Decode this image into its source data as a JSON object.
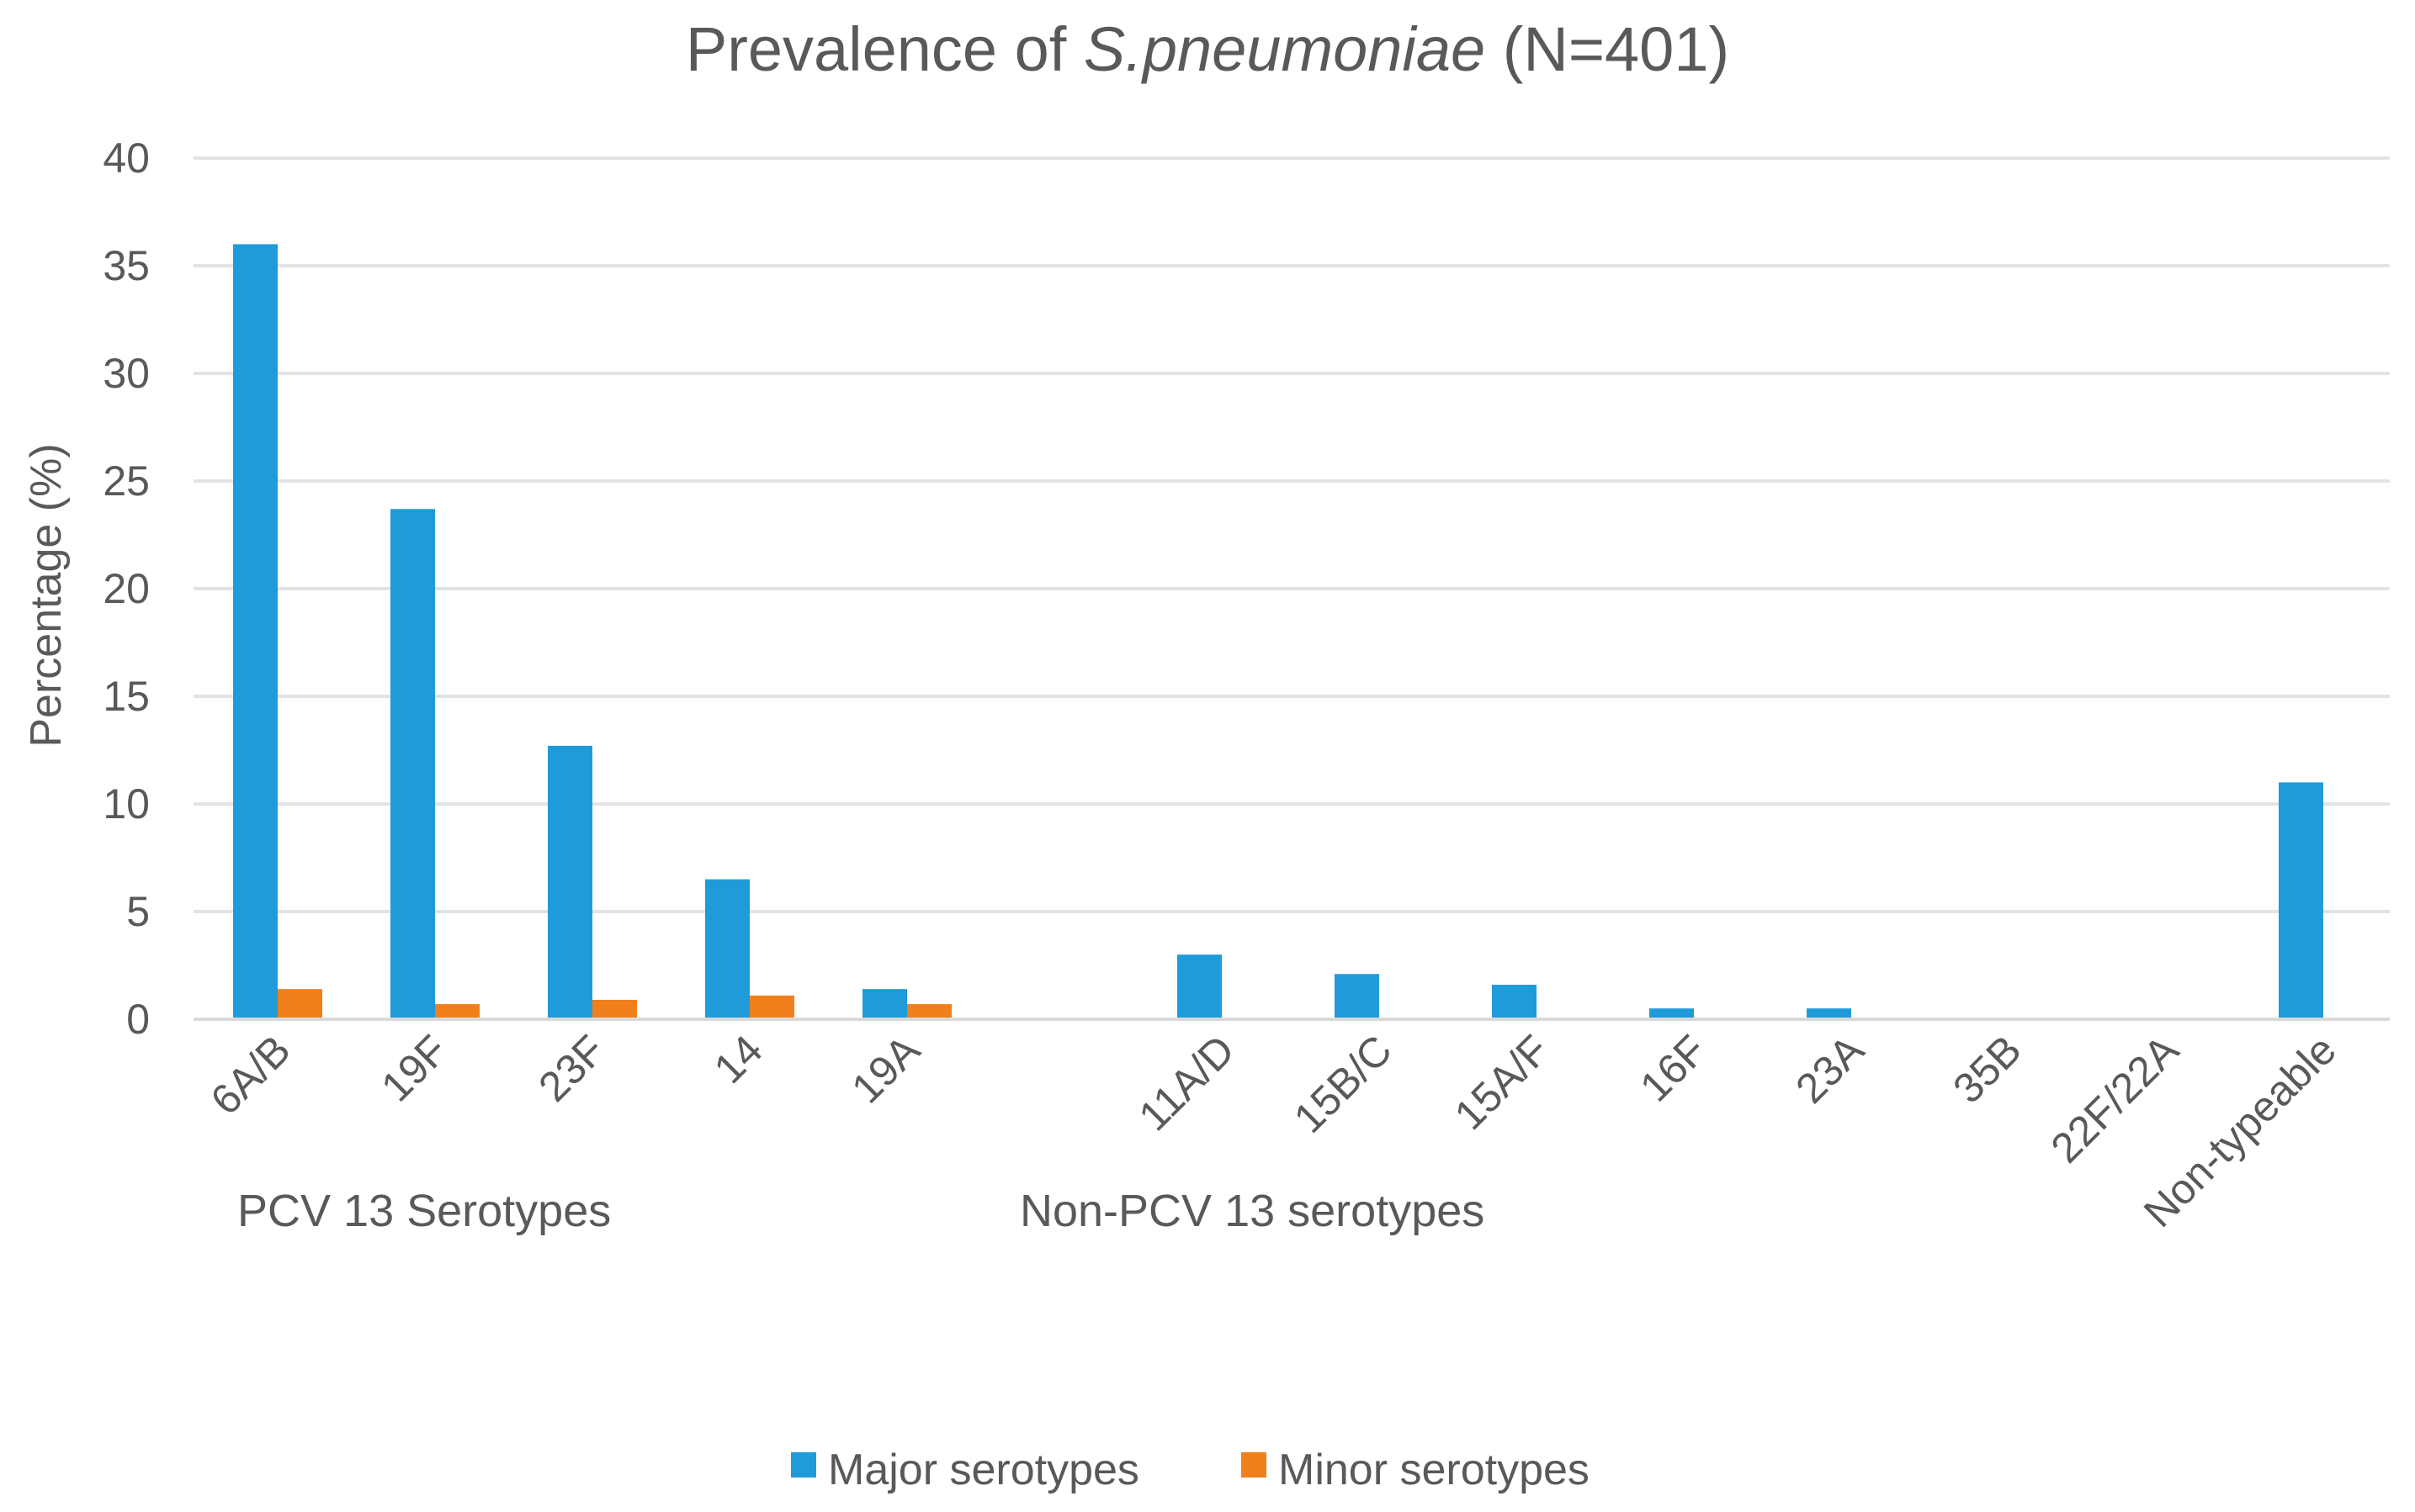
{
  "chart_data": {
    "type": "bar",
    "title_prefix": "Prevalence of ",
    "title_italic": "S.pneumoniae",
    "title_suffix": " (N=401)",
    "ylabel": "Percentage (%)",
    "xlabel": "",
    "ylim": [
      0,
      40
    ],
    "yticks": [
      0,
      5,
      10,
      15,
      20,
      25,
      30,
      35,
      40
    ],
    "grid": true,
    "categories": [
      "6A/B",
      "19F",
      "23F",
      "14",
      "19A",
      "",
      "11A/D",
      "15B/C",
      "15A/F",
      "16F",
      "23A",
      "35B",
      "22F/22A",
      "Non-typeable"
    ],
    "series": [
      {
        "name": "Major serotypes",
        "color": "#1f9bd9",
        "values": [
          36.0,
          23.7,
          12.7,
          6.5,
          1.4,
          0,
          3.0,
          2.1,
          1.6,
          0.5,
          0.5,
          0,
          0,
          11.0
        ]
      },
      {
        "name": "Minor serotypes",
        "color": "#f07f1c",
        "values": [
          1.4,
          0.7,
          0.9,
          1.1,
          0.7,
          0,
          0,
          0,
          0,
          0,
          0,
          0,
          0,
          0
        ]
      }
    ],
    "groups": [
      {
        "label": "PCV 13 Serotypes"
      },
      {
        "label": "Non-PCV 13 serotypes"
      }
    ],
    "legend_position": "bottom"
  }
}
